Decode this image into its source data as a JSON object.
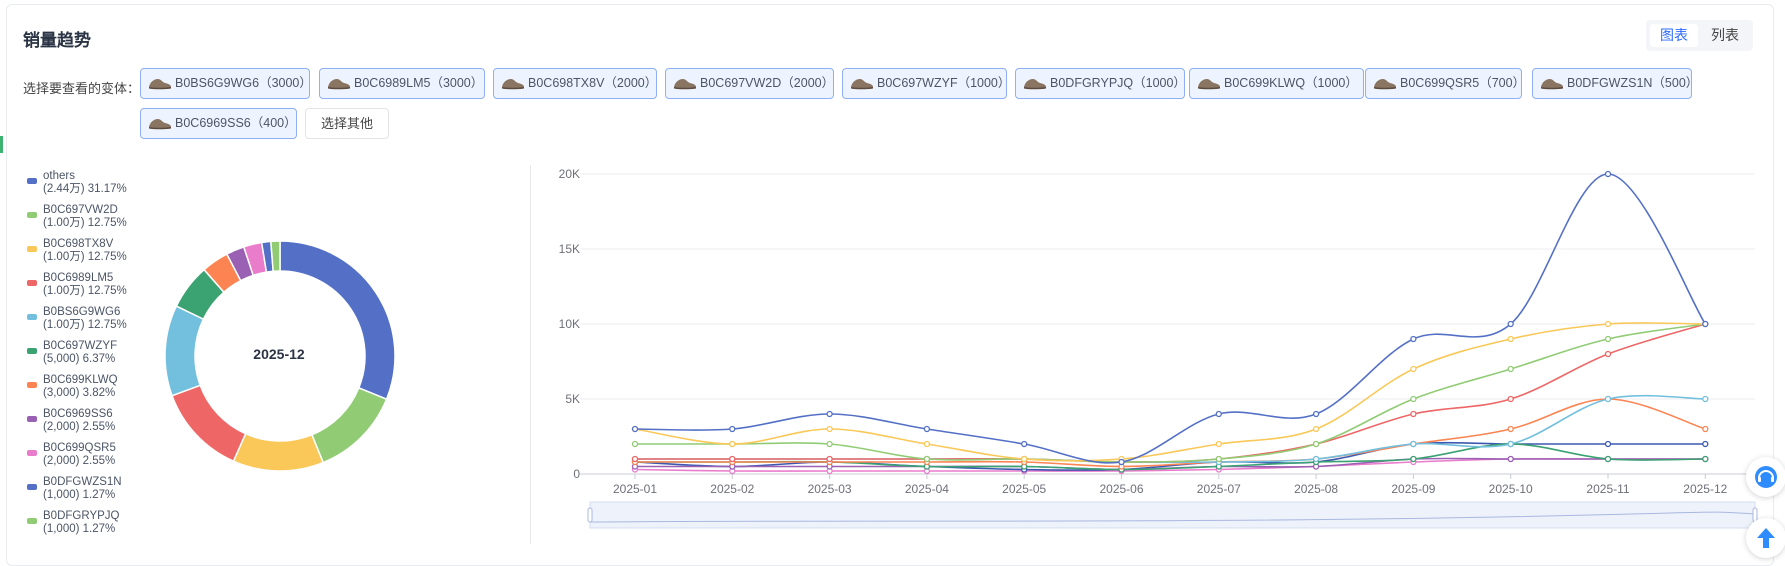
{
  "header": {
    "title": "销量趋势"
  },
  "view_toggle": {
    "chart_label": "图表",
    "list_label": "列表"
  },
  "variants": {
    "label": "选择要查看的变体：",
    "chips": [
      "B0BS6G9WG6（3000）",
      "B0C6989LM5（3000）",
      "B0C698TX8V（2000）",
      "B0C697VW2D（2000）",
      "B0C697WZYF（1000）",
      "B0DFGRYPJQ（1000）",
      "B0C699KLWQ（1000）",
      "B0C699QSR5（700）",
      "B0DFGWZS1N（500）",
      "B0C6969SS6（400）"
    ],
    "other_button": "选择其他"
  },
  "chart_data": [
    {
      "type": "pie",
      "variant": "donut",
      "center_label": "2025-12",
      "slices": [
        {
          "name": "others",
          "value_label": "(2.44万)",
          "percent_label": "31.17%",
          "value": 24400,
          "percent": 31.17,
          "color": "#5470c6"
        },
        {
          "name": "B0C697VW2D",
          "value_label": "(1.00万)",
          "percent_label": "12.75%",
          "value": 10000,
          "percent": 12.75,
          "color": "#91cc75"
        },
        {
          "name": "B0C698TX8V",
          "value_label": "(1.00万)",
          "percent_label": "12.75%",
          "value": 10000,
          "percent": 12.75,
          "color": "#fac858"
        },
        {
          "name": "B0C6989LM5",
          "value_label": "(1.00万)",
          "percent_label": "12.75%",
          "value": 10000,
          "percent": 12.75,
          "color": "#ee6666"
        },
        {
          "name": "B0BS6G9WG6",
          "value_label": "(1.00万)",
          "percent_label": "12.75%",
          "value": 10000,
          "percent": 12.75,
          "color": "#73c0de"
        },
        {
          "name": "B0C697WZYF",
          "value_label": "(5,000)",
          "percent_label": "6.37%",
          "value": 5000,
          "percent": 6.37,
          "color": "#3ba272"
        },
        {
          "name": "B0C699KLWQ",
          "value_label": "(3,000)",
          "percent_label": "3.82%",
          "value": 3000,
          "percent": 3.82,
          "color": "#fc8452"
        },
        {
          "name": "B0C6969SS6",
          "value_label": "(2,000)",
          "percent_label": "2.55%",
          "value": 2000,
          "percent": 2.55,
          "color": "#9a60b4"
        },
        {
          "name": "B0C699QSR5",
          "value_label": "(2,000)",
          "percent_label": "2.55%",
          "value": 2000,
          "percent": 2.55,
          "color": "#ea7ccc"
        },
        {
          "name": "B0DFGWZS1N",
          "value_label": "(1,000)",
          "percent_label": "1.27%",
          "value": 1000,
          "percent": 1.27,
          "color": "#5470c6"
        },
        {
          "name": "B0DFGRYPJQ",
          "value_label": "(1,000)",
          "percent_label": "1.27%",
          "value": 1000,
          "percent": 1.27,
          "color": "#91cc75"
        }
      ]
    },
    {
      "type": "line",
      "categories": [
        "2025-01",
        "2025-02",
        "2025-03",
        "2025-04",
        "2025-05",
        "2025-06",
        "2025-07",
        "2025-08",
        "2025-09",
        "2025-10",
        "2025-11",
        "2025-12"
      ],
      "ylim": [
        0,
        20000
      ],
      "yticks": [
        0,
        5000,
        10000,
        15000,
        20000
      ],
      "ytick_labels": [
        "0",
        "5K",
        "10K",
        "15K",
        "20K"
      ],
      "grid": true,
      "series": [
        {
          "color": "#5470c6",
          "values": [
            3000,
            3000,
            4000,
            3000,
            2000,
            800,
            4000,
            4000,
            9000,
            10000,
            20000,
            10000
          ]
        },
        {
          "color": "#fac858",
          "values": [
            3000,
            2000,
            3000,
            2000,
            1000,
            1000,
            2000,
            3000,
            7000,
            9000,
            10000,
            10000
          ]
        },
        {
          "color": "#91cc75",
          "values": [
            2000,
            2000,
            2000,
            1000,
            1000,
            800,
            1000,
            2000,
            5000,
            7000,
            9000,
            10000
          ]
        },
        {
          "color": "#ee6666",
          "values": [
            1000,
            1000,
            1000,
            1000,
            1000,
            800,
            1000,
            2000,
            4000,
            5000,
            8000,
            10000
          ]
        },
        {
          "color": "#73c0de",
          "values": [
            1000,
            1000,
            1000,
            1000,
            1000,
            800,
            800,
            1000,
            2000,
            2000,
            5000,
            5000
          ]
        },
        {
          "color": "#fc8452",
          "values": [
            800,
            800,
            800,
            800,
            800,
            500,
            800,
            1000,
            2000,
            3000,
            5000,
            3000
          ]
        },
        {
          "color": "#3ba272",
          "values": [
            800,
            800,
            800,
            500,
            500,
            300,
            500,
            800,
            1000,
            2000,
            1000,
            1000
          ]
        },
        {
          "color": "#9a60b4",
          "values": [
            500,
            500,
            500,
            500,
            500,
            300,
            500,
            500,
            1000,
            1000,
            1000,
            1000
          ]
        },
        {
          "color": "#3d58b0",
          "values": [
            800,
            500,
            800,
            500,
            300,
            300,
            800,
            800,
            2000,
            2000,
            2000,
            2000
          ]
        },
        {
          "color": "#ea7ccc",
          "values": [
            300,
            200,
            200,
            200,
            200,
            200,
            300,
            500,
            800,
            1000,
            1000,
            1000
          ]
        }
      ]
    }
  ]
}
